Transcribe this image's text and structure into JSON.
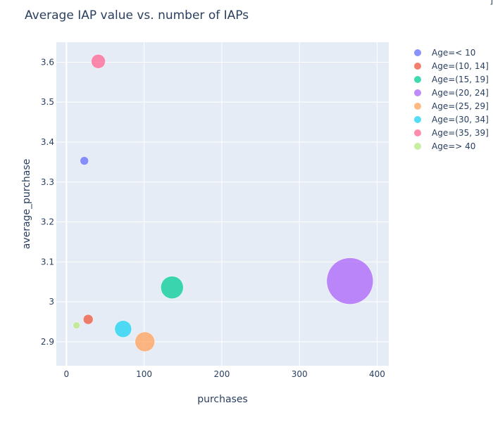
{
  "chart_data": {
    "type": "scatter",
    "title": "Average IAP value vs. number of IAPs",
    "xlabel": "purchases",
    "ylabel": "average_purchase",
    "xlim": [
      -13,
      415
    ],
    "ylim": [
      2.84,
      3.65
    ],
    "x_ticks": [
      0,
      100,
      200,
      300,
      400
    ],
    "y_ticks": [
      2.9,
      3,
      3.1,
      3.2,
      3.3,
      3.4,
      3.5,
      3.6
    ],
    "y_tick_labels": [
      "2.9",
      "3",
      "3.1",
      "3.2",
      "3.3",
      "3.4",
      "3.5",
      "3.6"
    ],
    "grid": true,
    "legend_position": "right",
    "series": [
      {
        "name": "Age=< 10",
        "color": "#636efa",
        "points": [
          {
            "x": 23,
            "y": 3.353
          }
        ]
      },
      {
        "name": "Age=(10, 14]",
        "color": "#ef553b",
        "points": [
          {
            "x": 28,
            "y": 2.956
          }
        ]
      },
      {
        "name": "Age=(15, 19]",
        "color": "#00cc96",
        "points": [
          {
            "x": 136,
            "y": 3.036
          }
        ]
      },
      {
        "name": "Age=(20, 24]",
        "color": "#ab63fa",
        "points": [
          {
            "x": 365,
            "y": 3.052
          }
        ]
      },
      {
        "name": "Age=(25, 29]",
        "color": "#ffa15a",
        "points": [
          {
            "x": 101,
            "y": 2.9
          }
        ]
      },
      {
        "name": "Age=(30, 34]",
        "color": "#19d3f3",
        "points": [
          {
            "x": 73,
            "y": 2.932
          }
        ]
      },
      {
        "name": "Age=(35, 39]",
        "color": "#ff6692",
        "points": [
          {
            "x": 41,
            "y": 3.602
          }
        ]
      },
      {
        "name": "Age=> 40",
        "color": "#b6e880",
        "points": [
          {
            "x": 13,
            "y": 2.941
          }
        ]
      }
    ]
  },
  "corner_glyph": "]"
}
